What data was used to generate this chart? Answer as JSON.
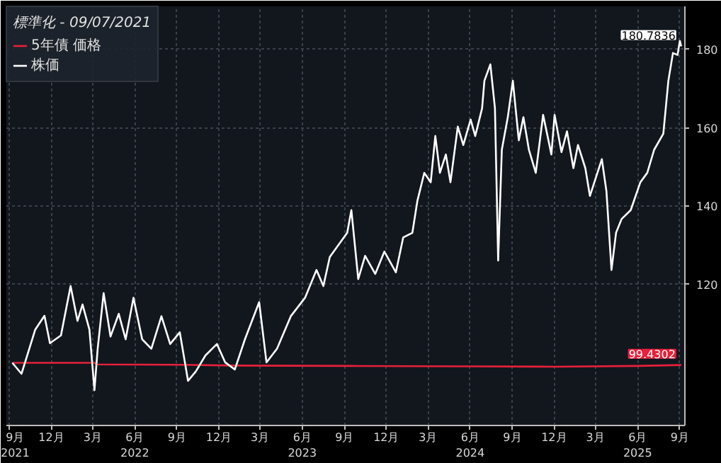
{
  "chart_data": {
    "type": "line",
    "legend_title": "標準化 - 09/07/2021",
    "legend": "top left",
    "grid": true,
    "marker": "none",
    "line_style": "solid",
    "xlim": [
      "2021-08-25",
      "2025-09-12"
    ],
    "ylim": [
      84,
      191
    ],
    "yticks": [
      120,
      140,
      160,
      180
    ],
    "xticks": [
      {
        "value": "2021-09-01",
        "label": "9月\n2021"
      },
      {
        "value": "2021-12-01",
        "label": "12月"
      },
      {
        "value": "2022-03-01",
        "label": "3月"
      },
      {
        "value": "2022-06-01",
        "label": "6月\n2022"
      },
      {
        "value": "2022-09-01",
        "label": "9月"
      },
      {
        "value": "2022-12-01",
        "label": "12月"
      },
      {
        "value": "2023-03-01",
        "label": "3月"
      },
      {
        "value": "2023-06-01",
        "label": "6月\n2023"
      },
      {
        "value": "2023-09-01",
        "label": "9月"
      },
      {
        "value": "2023-12-01",
        "label": "12月"
      },
      {
        "value": "2024-03-01",
        "label": "3月"
      },
      {
        "value": "2024-06-01",
        "label": "6月\n2024"
      },
      {
        "value": "2024-09-01",
        "label": "9月"
      },
      {
        "value": "2024-12-01",
        "label": "12月"
      },
      {
        "value": "2025-03-01",
        "label": "3月"
      },
      {
        "value": "2025-06-01",
        "label": "6月\n2025"
      },
      {
        "value": "2025-09-01",
        "label": "9月"
      }
    ],
    "series": [
      {
        "name": "5年債 価格",
        "color": "#e8203a",
        "x": [
          "2021-09-07",
          "2022-03-05",
          "2022-03-10",
          "2022-09-07",
          "2023-01-05",
          "2023-09-07",
          "2024-06-01",
          "2024-12-01",
          "2025-06-01",
          "2025-09-04"
        ],
        "values": [
          100,
          100,
          99.6,
          99.5,
          99.3,
          99.2,
          99.1,
          99.0,
          99.2,
          99.4302
        ],
        "value_labels": [
          null,
          null,
          null,
          null,
          null,
          null,
          null,
          null,
          null,
          "99.4302"
        ]
      },
      {
        "name": "株価",
        "color": "#ffffff",
        "x": [
          "2021-09-07",
          "2021-09-27",
          "2021-10-27",
          "2021-11-16",
          "2021-11-28",
          "2021-12-22",
          "2022-01-12",
          "2022-01-27",
          "2022-02-07",
          "2022-02-22",
          "2022-03-05",
          "2022-03-12",
          "2022-03-25",
          "2022-04-09",
          "2022-04-27",
          "2022-05-12",
          "2022-05-29",
          "2022-06-17",
          "2022-07-07",
          "2022-07-29",
          "2022-08-17",
          "2022-09-07",
          "2022-09-25",
          "2022-10-12",
          "2022-11-02",
          "2022-11-27",
          "2022-12-15",
          "2023-01-05",
          "2023-01-27",
          "2023-02-27",
          "2023-03-15",
          "2023-04-07",
          "2023-05-07",
          "2023-06-07",
          "2023-07-02",
          "2023-07-17",
          "2023-07-31",
          "2023-09-07",
          "2023-09-16",
          "2023-10-01",
          "2023-10-16",
          "2023-11-07",
          "2023-11-27",
          "2023-12-22",
          "2024-01-07",
          "2024-01-27",
          "2024-02-07",
          "2024-02-22",
          "2024-03-07",
          "2024-03-17",
          "2024-03-27",
          "2024-04-09",
          "2024-04-19",
          "2024-05-05",
          "2024-05-17",
          "2024-06-02",
          "2024-06-12",
          "2024-06-27",
          "2024-07-02",
          "2024-07-15",
          "2024-07-25",
          "2024-08-01",
          "2024-08-09",
          "2024-08-22",
          "2024-09-02",
          "2024-09-15",
          "2024-09-25",
          "2024-10-07",
          "2024-10-22",
          "2024-11-07",
          "2024-11-25",
          "2024-12-02",
          "2024-12-17",
          "2024-12-29",
          "2025-01-12",
          "2025-01-22",
          "2025-02-07",
          "2025-02-17",
          "2025-03-02",
          "2025-03-15",
          "2025-03-25",
          "2025-04-05",
          "2025-04-15",
          "2025-04-27",
          "2025-05-17",
          "2025-06-07",
          "2025-06-22",
          "2025-07-07",
          "2025-07-27",
          "2025-08-07",
          "2025-08-17",
          "2025-08-27",
          "2025-09-01",
          "2025-09-04"
        ],
        "values": [
          100,
          97.2,
          108.5,
          112,
          105,
          107,
          119.6,
          110.7,
          114.9,
          108.5,
          93,
          103.6,
          117.8,
          106.7,
          112.5,
          106,
          116.6,
          106,
          103.6,
          111.9,
          104.8,
          107.8,
          95.4,
          97.8,
          101.9,
          104.8,
          100.1,
          98.3,
          106,
          115.5,
          100.1,
          103.6,
          111.9,
          116.6,
          123.7,
          119.6,
          127,
          133.2,
          139,
          121.4,
          127.3,
          122.7,
          128.4,
          123.1,
          132,
          133.2,
          141.4,
          148.5,
          146.1,
          157.9,
          148.5,
          153.2,
          146.1,
          160.3,
          155.6,
          162.1,
          157.9,
          165,
          172,
          176.2,
          165,
          126.1,
          154.4,
          162.7,
          172,
          156.8,
          162.7,
          154.4,
          148.5,
          163.3,
          153.2,
          163.3,
          153.8,
          159.1,
          149.7,
          155.6,
          149.7,
          142.6,
          147.3,
          152,
          143.8,
          123.7,
          133.2,
          136.7,
          139,
          146.1,
          148.5,
          154.4,
          158.5,
          172,
          179.1,
          178.6,
          182.2,
          180.7836
        ],
        "value_labels": [
          null,
          null,
          null,
          null,
          null,
          null,
          null,
          null,
          null,
          null,
          null,
          null,
          null,
          null,
          null,
          null,
          null,
          null,
          null,
          null,
          null,
          null,
          null,
          null,
          null,
          null,
          null,
          null,
          null,
          null,
          null,
          null,
          null,
          null,
          null,
          null,
          null,
          null,
          null,
          null,
          null,
          null,
          null,
          null,
          null,
          null,
          null,
          null,
          null,
          null,
          null,
          null,
          null,
          null,
          null,
          null,
          null,
          null,
          null,
          null,
          null,
          null,
          null,
          null,
          null,
          null,
          null,
          null,
          null,
          null,
          null,
          null,
          null,
          null,
          null,
          null,
          null,
          null,
          null,
          null,
          null,
          null,
          null,
          null,
          null,
          null,
          null,
          null,
          null,
          null,
          null,
          null,
          null,
          "180.7836"
        ]
      }
    ]
  }
}
